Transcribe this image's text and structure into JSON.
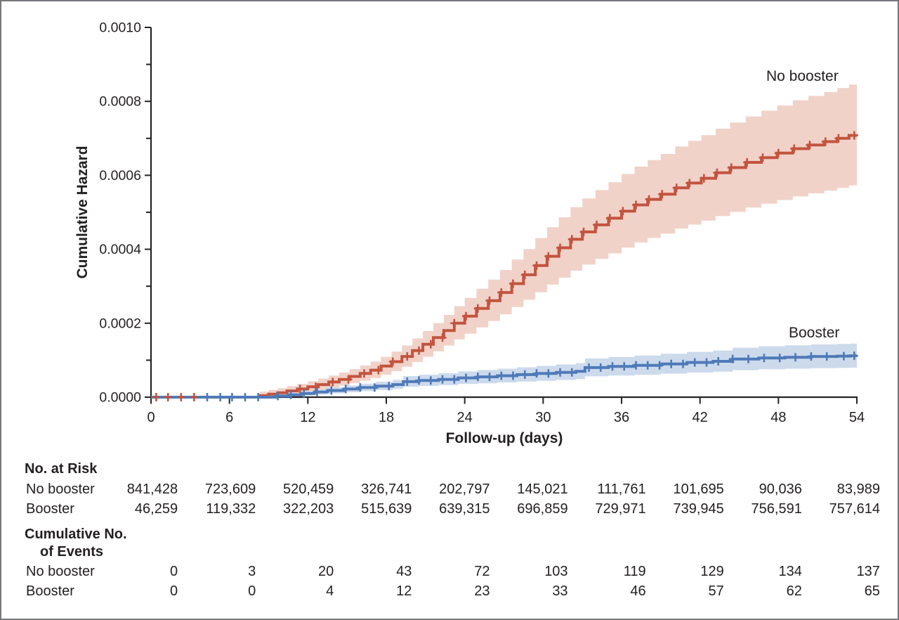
{
  "chart_data": {
    "type": "line",
    "subtype": "step-cumulative-hazard-with-ci-bands",
    "title": "",
    "xlabel": "Follow-up (days)",
    "ylabel": "Cumulative Hazard",
    "xlim": [
      0,
      54
    ],
    "ylim": [
      0,
      0.001
    ],
    "grid": false,
    "legend_position": "labels-at-line-ends",
    "x_ticks": [
      0,
      6,
      12,
      18,
      24,
      30,
      36,
      42,
      48,
      54
    ],
    "y_major_ticks_micro": [
      0,
      200,
      400,
      600,
      800,
      1000
    ],
    "y_major_tick_labels": [
      "0.0000",
      "0.0002",
      "0.0004",
      "0.0006",
      "0.0008",
      "0.0010"
    ],
    "y_minor_ticks_micro": [
      100,
      300,
      500,
      700,
      900
    ],
    "value_unit": 1e-06,
    "series": [
      {
        "name": "No booster",
        "color": "#c2543f",
        "band_color": "#f1d2c9",
        "points_micro": [
          [
            0,
            0
          ],
          [
            8.3,
            4
          ],
          [
            9,
            8
          ],
          [
            9.7,
            12
          ],
          [
            10.4,
            17
          ],
          [
            11.2,
            22
          ],
          [
            12,
            28
          ],
          [
            12.8,
            34
          ],
          [
            13.6,
            41
          ],
          [
            14.4,
            48
          ],
          [
            15.2,
            56
          ],
          [
            16,
            64
          ],
          [
            16.8,
            73
          ],
          [
            17.6,
            84
          ],
          [
            18.4,
            96
          ],
          [
            19.2,
            110
          ],
          [
            20,
            126
          ],
          [
            20.8,
            143
          ],
          [
            21.6,
            161
          ],
          [
            22.4,
            180
          ],
          [
            23.2,
            200
          ],
          [
            24,
            219
          ],
          [
            24.9,
            240
          ],
          [
            25.8,
            261
          ],
          [
            26.7,
            283
          ],
          [
            27.6,
            307
          ],
          [
            28.5,
            331
          ],
          [
            29.4,
            356
          ],
          [
            30.3,
            381
          ],
          [
            31.2,
            404
          ],
          [
            32.1,
            427
          ],
          [
            33,
            447
          ],
          [
            34,
            466
          ],
          [
            35,
            484
          ],
          [
            36,
            503
          ],
          [
            37,
            520
          ],
          [
            38,
            535
          ],
          [
            39,
            549
          ],
          [
            40.1,
            566
          ],
          [
            41.1,
            579
          ],
          [
            42.1,
            592
          ],
          [
            43.2,
            607
          ],
          [
            44.3,
            621
          ],
          [
            45.5,
            635
          ],
          [
            46.7,
            648
          ],
          [
            47.9,
            660
          ],
          [
            49.1,
            672
          ],
          [
            50.3,
            682
          ],
          [
            51.5,
            691
          ],
          [
            52.5,
            700
          ],
          [
            53.4,
            708
          ]
        ],
        "censor_days": [
          0.4,
          1.3,
          2.3,
          3.3,
          11.4,
          12.6,
          13.9,
          15.1,
          16.3,
          17.4,
          18.5,
          19.6,
          20.5,
          21.4,
          22.3,
          23.2,
          24.1,
          25,
          25.9,
          26.8,
          27.7,
          28.6,
          29.5,
          30.4,
          31.3,
          32.2,
          33.1,
          34.1,
          35.1,
          36.1,
          37.1,
          38.1,
          39.1,
          40.2,
          41.2,
          42.3,
          43.3,
          44.4,
          45.6,
          46.8,
          48,
          49.2,
          50.4,
          51.6,
          52.6,
          53.8
        ],
        "ci": {
          "lower_factor": 0.82,
          "lower_margin_micro": -8,
          "upper_factor": 1.18,
          "upper_margin_micro": 10
        }
      },
      {
        "name": "Booster",
        "color": "#4f7ab8",
        "band_color": "#ccdaec",
        "points_micro": [
          [
            0,
            0
          ],
          [
            9.5,
            3
          ],
          [
            10.5,
            6
          ],
          [
            11.5,
            10
          ],
          [
            12.5,
            14
          ],
          [
            13.5,
            18
          ],
          [
            14.8,
            22
          ],
          [
            16,
            26
          ],
          [
            17.2,
            30
          ],
          [
            18.5,
            34
          ],
          [
            19.3,
            42
          ],
          [
            20.5,
            45
          ],
          [
            22,
            48
          ],
          [
            23.5,
            52
          ],
          [
            25,
            55
          ],
          [
            26.5,
            58
          ],
          [
            28,
            61
          ],
          [
            29.5,
            64
          ],
          [
            31,
            67
          ],
          [
            32.5,
            70
          ],
          [
            33.2,
            80
          ],
          [
            35,
            83
          ],
          [
            37,
            86
          ],
          [
            39,
            90
          ],
          [
            41,
            94
          ],
          [
            43,
            97
          ],
          [
            44.5,
            103
          ],
          [
            46.5,
            106
          ],
          [
            48.5,
            108
          ],
          [
            50.5,
            110
          ],
          [
            52.5,
            111
          ],
          [
            53.5,
            112
          ]
        ],
        "censor_days": [
          4.3,
          5.3,
          6.2,
          7.2,
          8.2,
          9.7,
          10.7,
          11.7,
          12.7,
          13.8,
          14.9,
          16,
          17.1,
          18.2,
          19.6,
          20.5,
          21.4,
          22.3,
          23.2,
          24.1,
          25,
          25.9,
          26.8,
          27.7,
          28.6,
          29.5,
          30.4,
          31.3,
          32.2,
          33.5,
          34.4,
          35.3,
          36.2,
          37.1,
          38,
          38.9,
          39.8,
          40.7,
          41.6,
          42.5,
          43.4,
          44.5,
          45.7,
          46.9,
          48.1,
          49.3,
          50.5,
          51.7,
          53,
          53.8
        ],
        "ci": {
          "lower_factor": 0.74,
          "lower_margin_micro": -3,
          "upper_factor": 1.26,
          "upper_margin_micro": 4
        }
      }
    ]
  },
  "risk_table": {
    "at_risk_header": "No. at Risk",
    "events_header_1": "Cumulative No.",
    "events_header_2": "of Events",
    "at_risk_rows": [
      {
        "label": "No booster",
        "values": [
          "841,428",
          "723,609",
          "520,459",
          "326,741",
          "202,797",
          "145,021",
          "111,761",
          "101,695",
          "90,036",
          "83,989"
        ]
      },
      {
        "label": "Booster",
        "values": [
          "46,259",
          "119,332",
          "322,203",
          "515,639",
          "639,315",
          "696,859",
          "729,971",
          "739,945",
          "756,591",
          "757,614"
        ]
      }
    ],
    "events_rows": [
      {
        "label": "No booster",
        "values": [
          "0",
          "3",
          "20",
          "43",
          "72",
          "103",
          "119",
          "129",
          "134",
          "137"
        ]
      },
      {
        "label": "Booster",
        "values": [
          "0",
          "0",
          "4",
          "12",
          "23",
          "33",
          "46",
          "57",
          "62",
          "65"
        ]
      }
    ]
  },
  "colors": {
    "no_booster_line": "#c2543f",
    "no_booster_band": "#f1d2c9",
    "booster_line": "#4f7ab8",
    "booster_band": "#ccdaec",
    "axis": "#262324",
    "text": "#231f20",
    "frame_border": "#76777a"
  }
}
